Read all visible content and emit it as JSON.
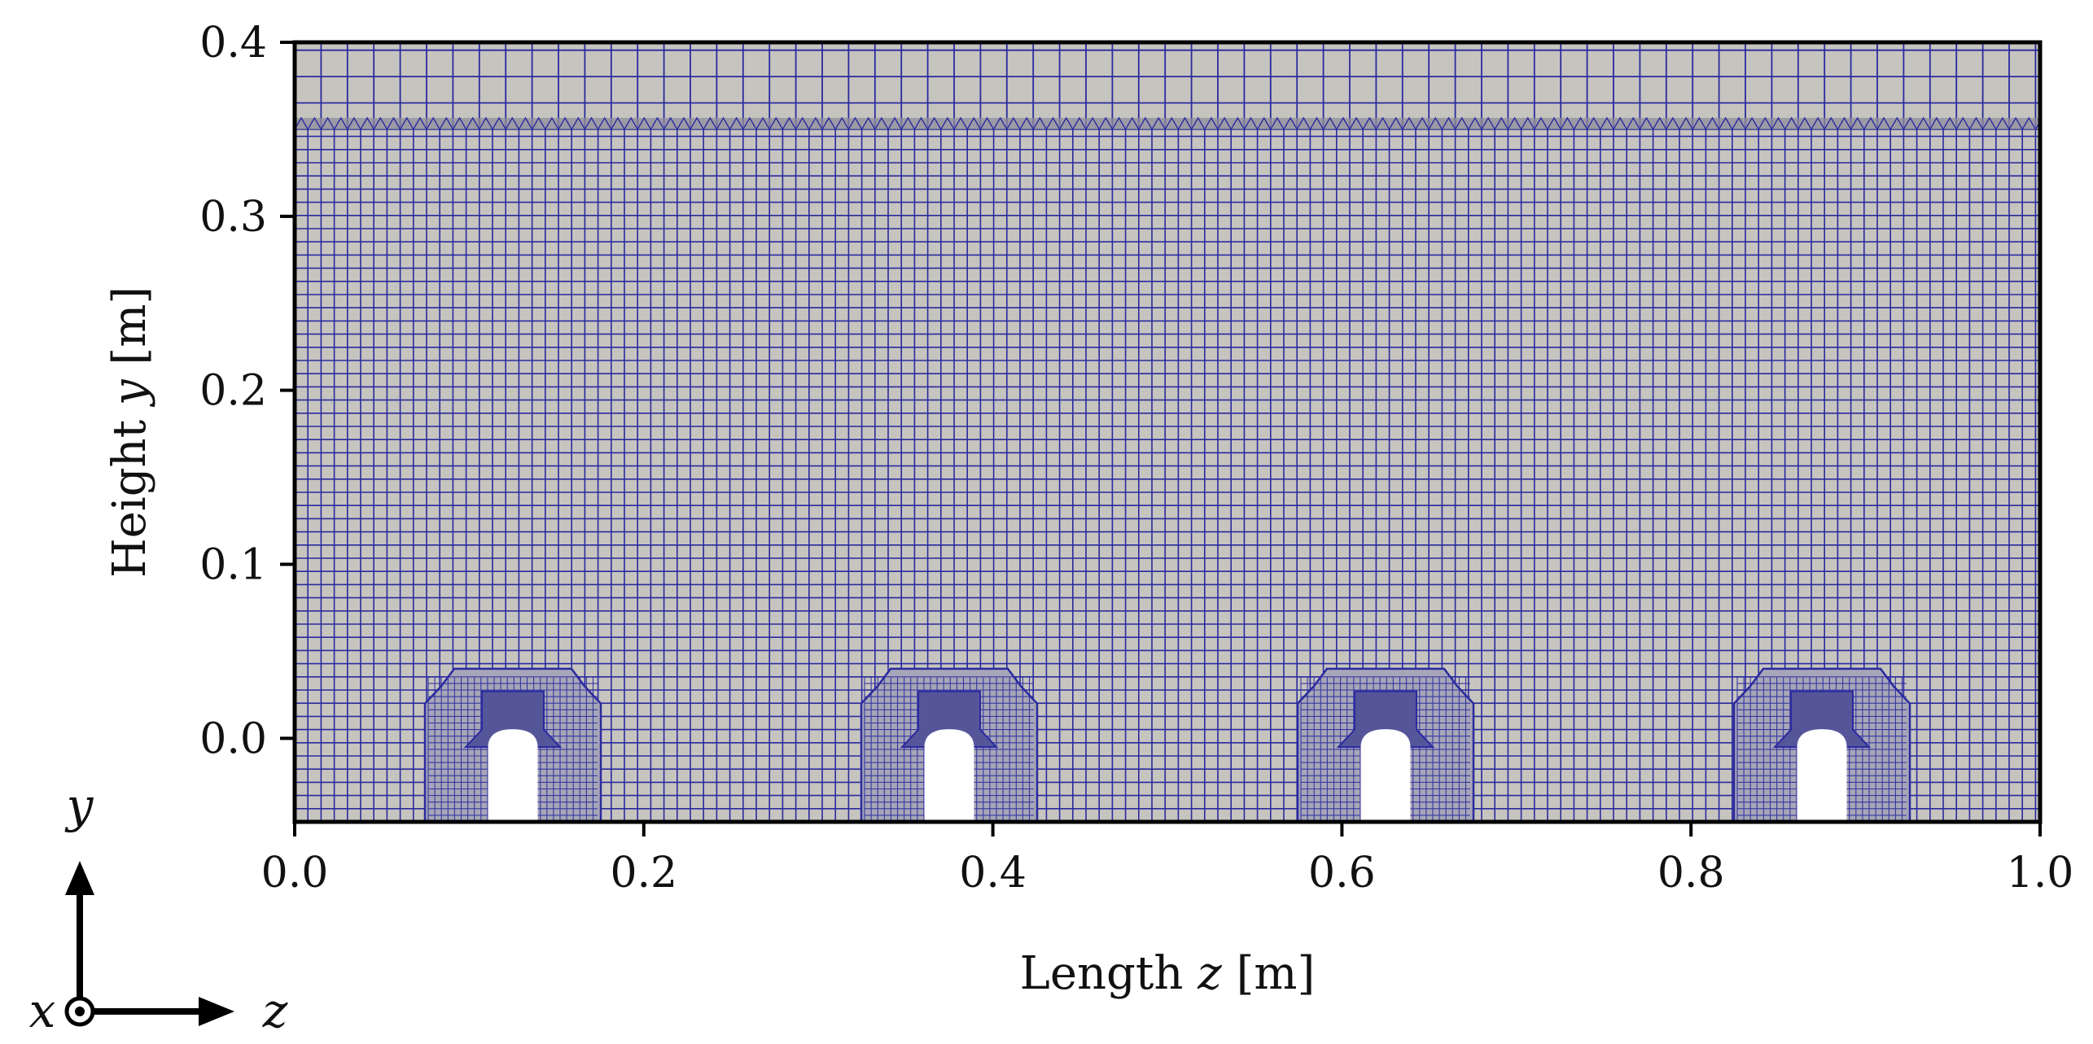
{
  "chart_data": {
    "type": "mesh",
    "description": "Computational mesh slice (y–z plane) showing four roughness elements on the bottom wall",
    "xlabel_prefix": "Length ",
    "xlabel_var": "z",
    "xlabel_unit": " [m]",
    "ylabel_prefix": "Height ",
    "ylabel_var": "y",
    "ylabel_unit": " [m]",
    "xlim": [
      0.0,
      1.0
    ],
    "ylim": [
      -0.048,
      0.4
    ],
    "xticks": [
      0.0,
      0.2,
      0.4,
      0.6,
      0.8,
      1.0
    ],
    "xtick_labels": [
      "0.0",
      "0.2",
      "0.4",
      "0.6",
      "0.8",
      "1.0"
    ],
    "yticks": [
      0.0,
      0.1,
      0.2,
      0.3,
      0.4
    ],
    "ytick_labels": [
      "0.0",
      "0.1",
      "0.2",
      "0.3",
      "0.4"
    ],
    "refinement_interface_y": 0.35,
    "obstacle_centers_z": [
      0.125,
      0.375,
      0.625,
      0.875
    ],
    "colors": {
      "mesh_fill": "#c6c4bf",
      "mesh_line": "#2a2a9e",
      "frame": "#000000"
    }
  },
  "triad": {
    "axis_vertical": "y",
    "axis_horizontal": "z",
    "axis_out_of_plane": "x"
  }
}
